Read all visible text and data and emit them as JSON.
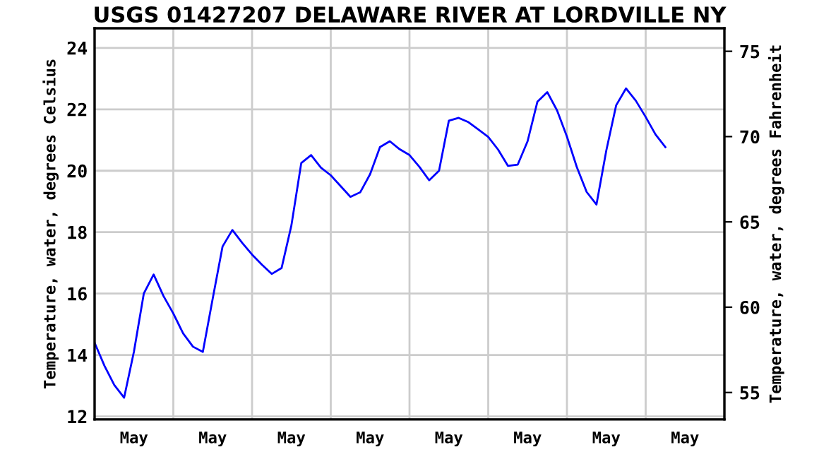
{
  "chart_data": {
    "type": "line",
    "title": "USGS 01427207 DELAWARE RIVER AT LORDVILLE NY",
    "ylabel": "Temperature, water, degrees Celsius",
    "y2label": "Temperature, water, degrees Fahrenheit",
    "categories": [
      null,
      null,
      null,
      null,
      "May",
      null,
      null,
      null,
      null,
      null,
      null,
      null,
      "May",
      null,
      null,
      null,
      null,
      null,
      null,
      null,
      "May",
      null,
      null,
      null,
      null,
      null,
      null,
      null,
      "May",
      null,
      null,
      null,
      null,
      null,
      null,
      null,
      "May",
      null,
      null,
      null,
      null,
      null,
      null,
      null,
      "May",
      null,
      null,
      null,
      null,
      null,
      null,
      null,
      "May",
      null,
      null,
      null,
      null,
      null,
      null,
      null,
      "May",
      null,
      null,
      null,
      null
    ],
    "series": [
      {
        "color": "#0000ff",
        "values": [
          14.4,
          13.65,
          13.02,
          12.61,
          14.11,
          16.0,
          16.62,
          15.92,
          15.35,
          14.7,
          14.27,
          14.1,
          15.83,
          17.53,
          18.07,
          17.65,
          17.27,
          16.94,
          16.64,
          16.83,
          18.22,
          20.25,
          20.51,
          20.1,
          19.85,
          19.5,
          19.15,
          19.3,
          19.89,
          20.77,
          20.96,
          20.7,
          20.51,
          20.13,
          19.69,
          20.0,
          21.63,
          21.72,
          21.58,
          21.34,
          21.1,
          20.69,
          20.16,
          20.2,
          20.96,
          22.25,
          22.56,
          21.96,
          21.11,
          20.12,
          19.31,
          18.9,
          20.66,
          22.13,
          22.68,
          22.28,
          21.75,
          21.18,
          20.77,
          null,
          null,
          null,
          null,
          null,
          null
        ]
      }
    ],
    "ylim": [
      11.9,
      24.64
    ],
    "yticks": [
      12,
      14,
      16,
      18,
      20,
      22,
      24
    ],
    "y2lim": [
      53.42,
      76.35
    ],
    "y2ticks": [
      55,
      60,
      65,
      70,
      75
    ],
    "grid": true,
    "legend": false,
    "marker": "none",
    "line_style": "solid"
  }
}
